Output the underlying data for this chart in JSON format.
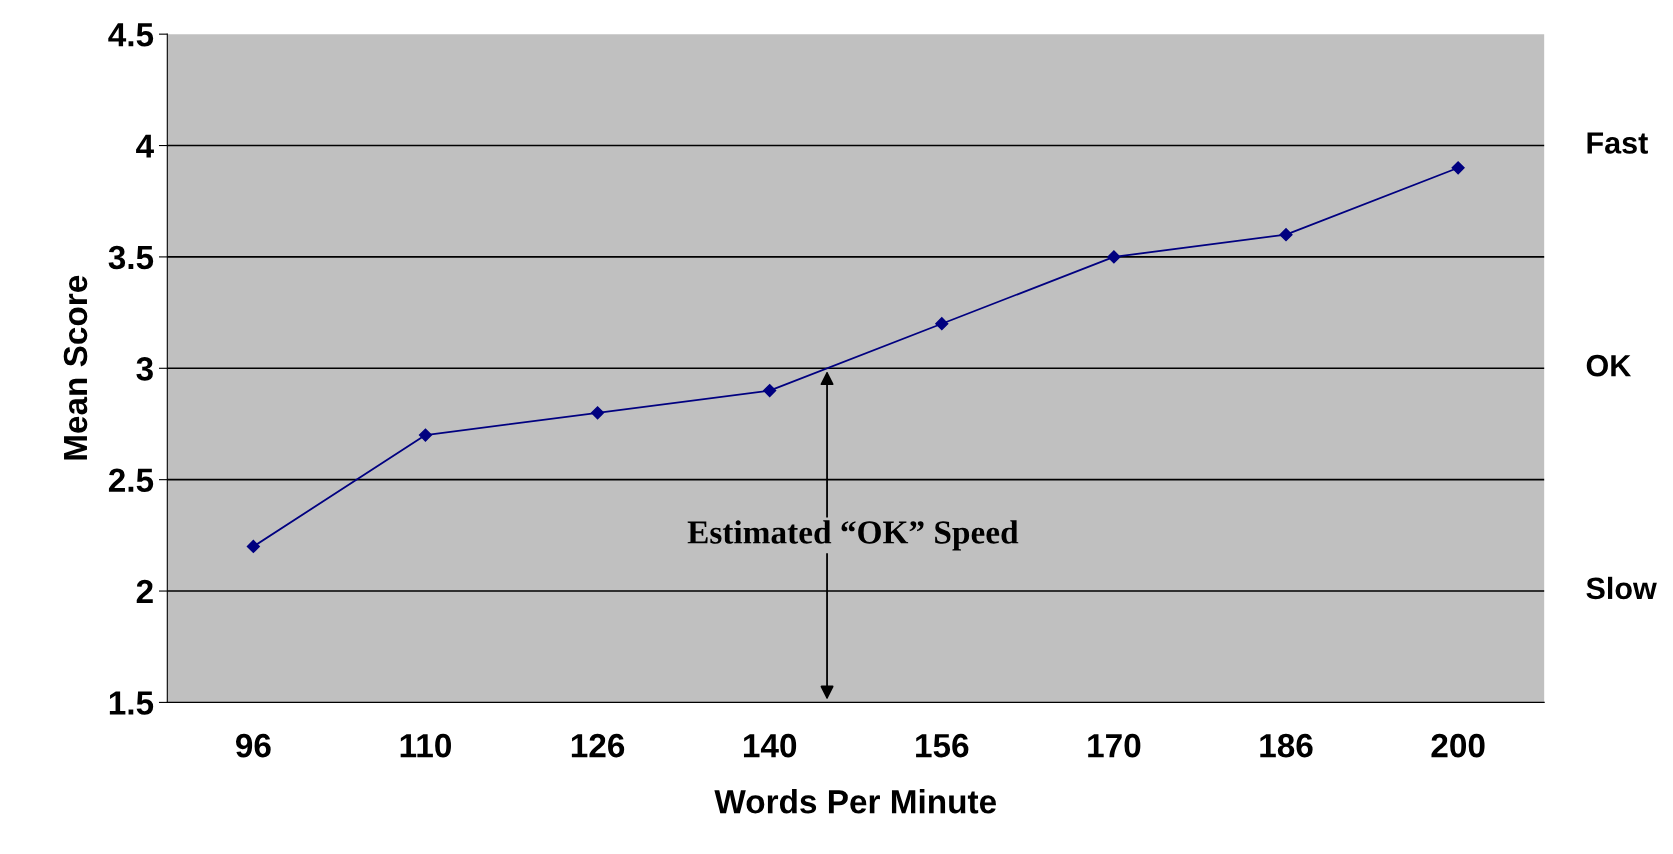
{
  "chart_data": {
    "type": "line",
    "xlabel": "Words Per Minute",
    "ylabel": "Mean Score",
    "categories": [
      "96",
      "110",
      "126",
      "140",
      "156",
      "170",
      "186",
      "200"
    ],
    "series": [
      {
        "color": "#000080",
        "values": [
          2.2,
          2.7,
          2.8,
          2.9,
          3.2,
          3.5,
          3.6,
          3.9
        ]
      }
    ],
    "ylim": [
      1.5,
      4.5
    ],
    "yticks": [
      1.5,
      2,
      2.5,
      3,
      3.5,
      4,
      4.5
    ],
    "annotations": [
      "Estimated “OK” Speed",
      "Fast",
      "OK",
      "Slow"
    ],
    "grid": "y",
    "marker": "diamond",
    "line_style": "solid",
    "legend": false
  }
}
